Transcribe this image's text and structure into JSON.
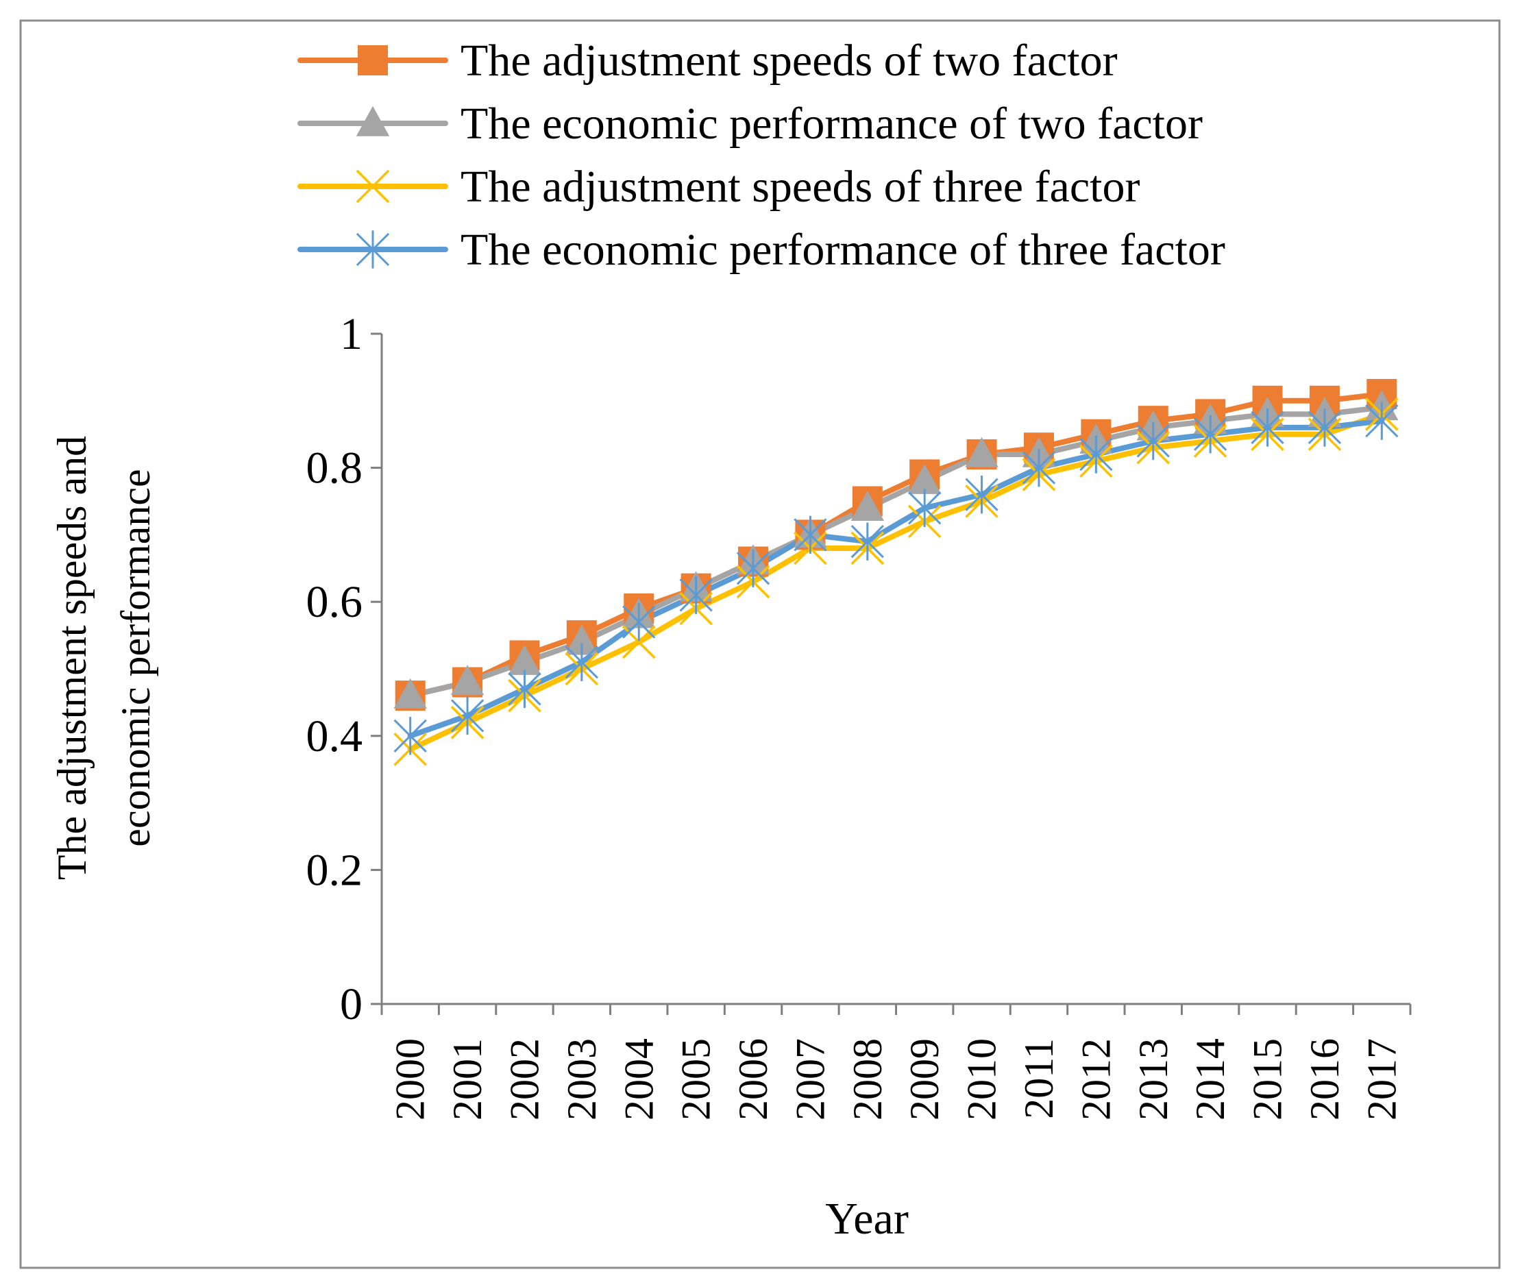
{
  "chart_data": {
    "type": "line",
    "title": "",
    "xlabel": "Year",
    "ylabel_lines": [
      "The adjustment speeds and",
      "economic performance"
    ],
    "categories": [
      "2000",
      "2001",
      "2002",
      "2003",
      "2004",
      "2005",
      "2006",
      "2007",
      "2008",
      "2009",
      "2010",
      "2011",
      "2012",
      "2013",
      "2014",
      "2015",
      "2016",
      "2017"
    ],
    "ylim": [
      0,
      1
    ],
    "yticks": [
      0,
      0.2,
      0.4,
      0.6,
      0.8,
      1
    ],
    "ytick_labels": [
      "0",
      "0.2",
      "0.4",
      "0.6",
      "0.8",
      "1"
    ],
    "grid": false,
    "legend_position": "top",
    "series": [
      {
        "name": "The adjustment speeds of two factor",
        "color": "#ED7D31",
        "marker": "square",
        "values": [
          0.46,
          0.48,
          0.52,
          0.55,
          0.59,
          0.62,
          0.66,
          0.7,
          0.75,
          0.79,
          0.82,
          0.83,
          0.85,
          0.87,
          0.88,
          0.9,
          0.9,
          0.91
        ]
      },
      {
        "name": "The economic performance of two factor",
        "color": "#A5A5A5",
        "marker": "triangle",
        "values": [
          0.46,
          0.48,
          0.51,
          0.54,
          0.58,
          0.62,
          0.66,
          0.7,
          0.74,
          0.78,
          0.82,
          0.82,
          0.84,
          0.86,
          0.87,
          0.88,
          0.88,
          0.89
        ]
      },
      {
        "name": "The adjustment speeds of three factor",
        "color": "#FFC000",
        "marker": "x",
        "values": [
          0.38,
          0.42,
          0.46,
          0.5,
          0.54,
          0.59,
          0.63,
          0.68,
          0.68,
          0.72,
          0.75,
          0.79,
          0.81,
          0.83,
          0.84,
          0.85,
          0.85,
          0.88
        ]
      },
      {
        "name": "The economic performance of three factor",
        "color": "#5B9BD5",
        "marker": "asterisk",
        "values": [
          0.4,
          0.43,
          0.47,
          0.51,
          0.57,
          0.61,
          0.65,
          0.7,
          0.69,
          0.74,
          0.76,
          0.8,
          0.82,
          0.84,
          0.85,
          0.86,
          0.86,
          0.87
        ]
      }
    ]
  }
}
